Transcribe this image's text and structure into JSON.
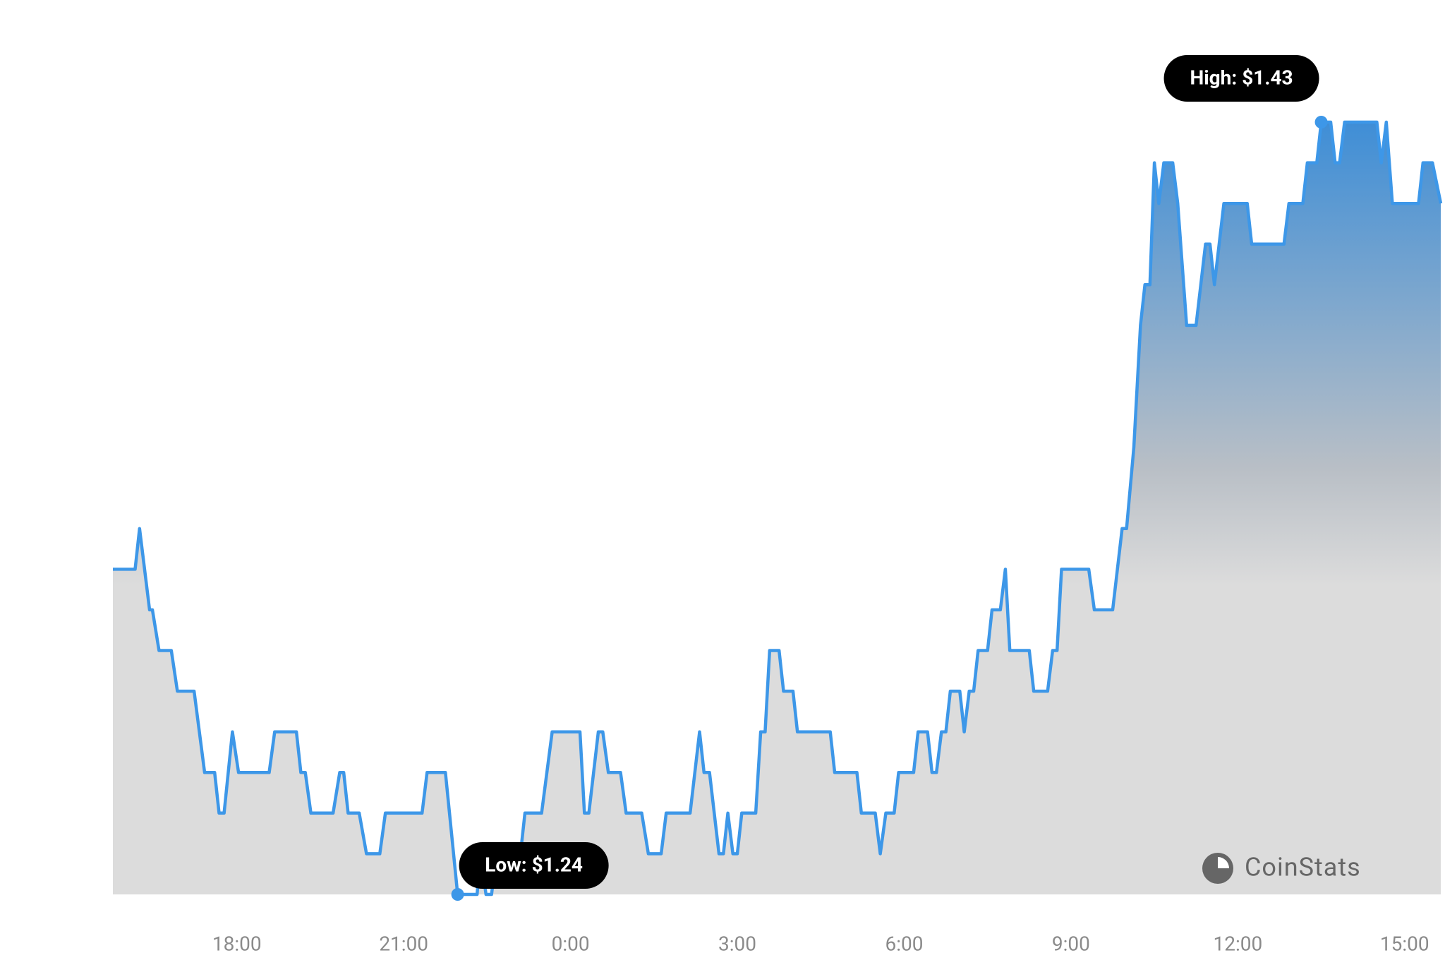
{
  "chart_data": {
    "type": "area",
    "color": "#3d97e8",
    "x": [
      15.77,
      16.17,
      16.25,
      16.43,
      16.48,
      16.6,
      16.82,
      16.93,
      17.23,
      17.42,
      17.6,
      17.68,
      17.77,
      17.92,
      18.03,
      18.58,
      18.68,
      19.07,
      19.15,
      19.23,
      19.33,
      19.73,
      19.85,
      19.92,
      20,
      20.2,
      20.33,
      20.57,
      20.67,
      21.33,
      21.42,
      21.75,
      21.97,
      22.32,
      22.38,
      22.48,
      22.58,
      22.67,
      23.1,
      23.18,
      23.48,
      23.67,
      24.17,
      24.25,
      24.33,
      24.5,
      24.58,
      24.68,
      24.9,
      25,
      25.28,
      25.4,
      25.63,
      25.72,
      26.15,
      26.32,
      26.4,
      26.5,
      26.67,
      26.75,
      26.83,
      26.92,
      27,
      27.08,
      27.33,
      27.42,
      27.5,
      27.58,
      27.75,
      27.83,
      28,
      28.08,
      28.67,
      28.75,
      29.15,
      29.23,
      29.48,
      29.57,
      29.67,
      29.82,
      29.9,
      30.17,
      30.25,
      30.42,
      30.5,
      30.58,
      30.67,
      30.75,
      30.83,
      31,
      31.08,
      31.17,
      31.25,
      31.33,
      31.5,
      31.58,
      31.73,
      31.82,
      31.9,
      32.25,
      32.33,
      32.58,
      32.67,
      32.75,
      32.83,
      33.32,
      33.42,
      33.75,
      33.92,
      34,
      34.13,
      34.25,
      34.33,
      34.42,
      34.5,
      34.58,
      34.67,
      34.83,
      34.92,
      35.08,
      35.25,
      35.42,
      35.5,
      35.58,
      35.75,
      36.17,
      36.25,
      36.83,
      36.92,
      37.17,
      37.25,
      37.42,
      37.5,
      37.67,
      37.75,
      37.83,
      37.92,
      38.5,
      38.58,
      38.67,
      38.78,
      39.25,
      39.33,
      39.5,
      39.65
    ],
    "values": [
      1.32,
      1.32,
      1.33,
      1.31,
      1.31,
      1.3,
      1.3,
      1.29,
      1.29,
      1.27,
      1.27,
      1.26,
      1.26,
      1.28,
      1.27,
      1.27,
      1.28,
      1.28,
      1.27,
      1.27,
      1.26,
      1.26,
      1.27,
      1.27,
      1.26,
      1.26,
      1.25,
      1.25,
      1.26,
      1.26,
      1.27,
      1.27,
      1.24,
      1.24,
      1.25,
      1.24,
      1.24,
      1.25,
      1.25,
      1.26,
      1.26,
      1.28,
      1.28,
      1.26,
      1.26,
      1.28,
      1.28,
      1.27,
      1.27,
      1.26,
      1.26,
      1.25,
      1.25,
      1.26,
      1.26,
      1.28,
      1.27,
      1.27,
      1.25,
      1.25,
      1.26,
      1.25,
      1.25,
      1.26,
      1.26,
      1.28,
      1.28,
      1.3,
      1.3,
      1.29,
      1.29,
      1.28,
      1.28,
      1.27,
      1.27,
      1.26,
      1.26,
      1.25,
      1.26,
      1.26,
      1.27,
      1.27,
      1.28,
      1.28,
      1.27,
      1.27,
      1.28,
      1.28,
      1.29,
      1.29,
      1.28,
      1.29,
      1.29,
      1.3,
      1.3,
      1.31,
      1.31,
      1.32,
      1.3,
      1.3,
      1.29,
      1.29,
      1.3,
      1.3,
      1.32,
      1.32,
      1.31,
      1.31,
      1.33,
      1.33,
      1.35,
      1.38,
      1.39,
      1.39,
      1.42,
      1.41,
      1.42,
      1.42,
      1.41,
      1.38,
      1.38,
      1.4,
      1.4,
      1.39,
      1.41,
      1.41,
      1.4,
      1.4,
      1.41,
      1.41,
      1.42,
      1.42,
      1.43,
      1.43,
      1.42,
      1.42,
      1.43,
      1.43,
      1.42,
      1.43,
      1.41,
      1.41,
      1.42,
      1.42,
      1.41
    ],
    "xlim": [
      15.77,
      39.65
    ],
    "ylim": [
      1.24,
      1.43
    ],
    "xticks": [
      {
        "value": 18,
        "label": "18:00"
      },
      {
        "value": 21,
        "label": "21:00"
      },
      {
        "value": 24,
        "label": "0:00"
      },
      {
        "value": 27,
        "label": "3:00"
      },
      {
        "value": 30,
        "label": "6:00"
      },
      {
        "value": 33,
        "label": "9:00"
      },
      {
        "value": 36,
        "label": "12:00"
      },
      {
        "value": 39,
        "label": "15:00"
      }
    ],
    "annotations": {
      "high": "High: $1.43",
      "low": "Low: $1.24"
    },
    "watermark": "CoinStats"
  }
}
